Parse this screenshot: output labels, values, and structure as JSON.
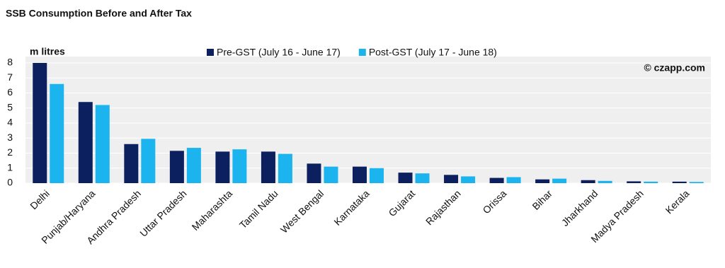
{
  "chart_data": {
    "type": "bar",
    "title": "SSB Consumption Before and After Tax",
    "y_label": "m litres",
    "annotation": "© czapp.com",
    "categories": [
      "Delhi",
      "Punjab/Haryana",
      "Andhra Pradesh",
      "Uttar Pradesh",
      "Maharashta",
      "Tamil Nadu",
      "West Bengal",
      "Karnataka",
      "Gujarat",
      "Rajasthan",
      "Orissa",
      "Bihar",
      "Jharkhand",
      "Madya Pradesh",
      "Kerala"
    ],
    "series": [
      {
        "name": "Pre-GST (July 16 - June 17)",
        "color": "#0c1f5e",
        "values": [
          8,
          5.4,
          2.6,
          2.15,
          2.1,
          2.1,
          1.3,
          1.1,
          0.7,
          0.55,
          0.35,
          0.25,
          0.2,
          0.12,
          0.1
        ]
      },
      {
        "name": "Post-GST (July 17 - June 18)",
        "color": "#1cb4ee",
        "values": [
          6.6,
          5.2,
          2.95,
          2.35,
          2.25,
          1.95,
          1.1,
          1.0,
          0.65,
          0.45,
          0.4,
          0.3,
          0.15,
          0.1,
          0.08
        ]
      }
    ],
    "ylim": [
      0,
      8
    ],
    "yticks": [
      0,
      1,
      2,
      3,
      4,
      5,
      6,
      7,
      8
    ],
    "grid": true
  }
}
